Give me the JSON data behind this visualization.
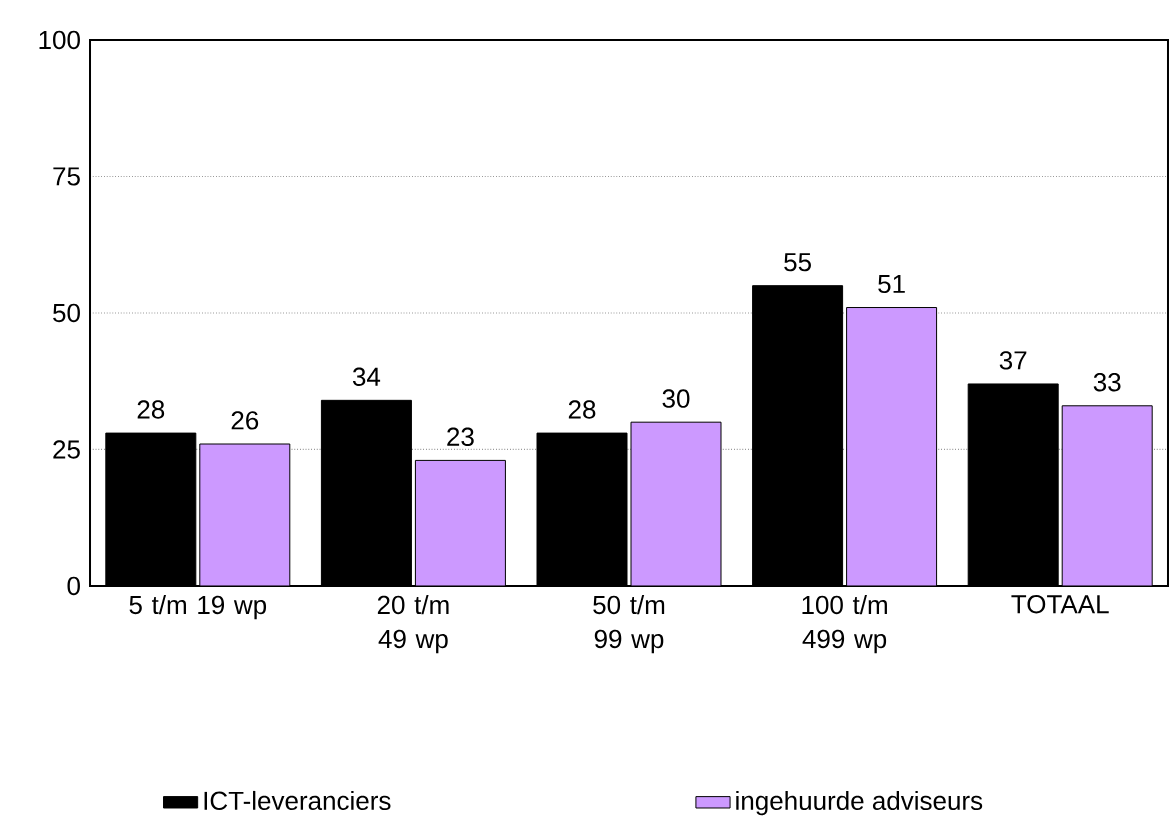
{
  "chart_data": {
    "type": "bar",
    "categories": [
      "5 t/m 19 wp",
      "20 t/m 49 wp",
      "50 t/m 99 wp",
      "100 t/m 499 wp",
      "TOTAAL"
    ],
    "series": [
      {
        "name": "ICT-leveranciers",
        "color": "#000000",
        "values": [
          28,
          34,
          28,
          55,
          37
        ]
      },
      {
        "name": "ingehuurde adviseurs",
        "color": "#cc99ff",
        "values": [
          26,
          23,
          30,
          51,
          33
        ]
      }
    ],
    "ylim": [
      0,
      100
    ],
    "yticks": [
      0,
      25,
      50,
      75,
      100
    ],
    "grid": "y",
    "legend": "bottom",
    "data_labels": true
  }
}
